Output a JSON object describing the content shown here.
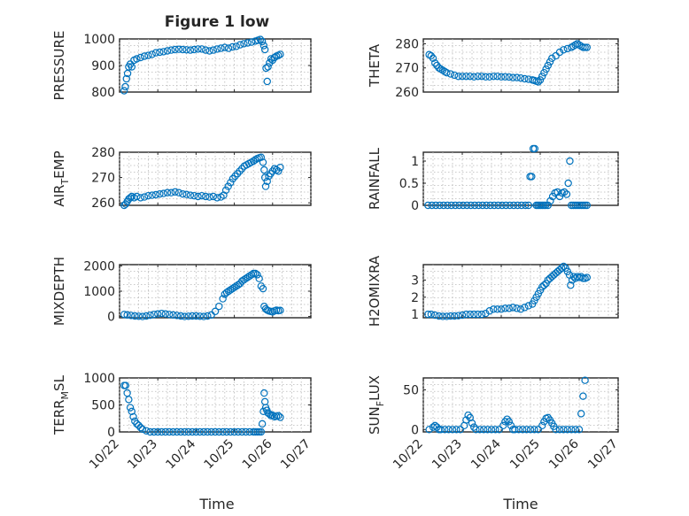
{
  "figure": {
    "title": "Figure 1 low",
    "xlabel": "Time",
    "x_ticklabels": [
      "10/22",
      "10/23",
      "10/24",
      "10/25",
      "10/26",
      "10/27"
    ],
    "marker_color": "#0072bd"
  },
  "chart_data": [
    {
      "type": "scatter",
      "ylabel": "PRESSURE",
      "ylim": [
        800,
        1000
      ],
      "yticks": [
        800,
        900,
        1000
      ],
      "xlim": [
        0,
        5
      ],
      "grid": true,
      "series": [
        {
          "x": [
            0.12,
            0.15,
            0.18,
            0.21,
            0.24,
            0.28,
            0.32,
            0.38,
            0.45,
            0.55,
            0.65,
            0.75,
            0.85,
            0.95,
            1.05,
            1.15,
            1.25,
            1.35,
            1.45,
            1.55,
            1.65,
            1.75,
            1.85,
            1.95,
            2.05,
            2.15,
            2.25,
            2.35,
            2.45,
            2.55,
            2.65,
            2.75,
            2.85,
            2.95,
            3.05,
            3.15,
            3.25,
            3.35,
            3.45,
            3.55,
            3.62,
            3.68,
            3.73,
            3.77,
            3.8,
            3.83,
            3.86,
            3.88,
            3.92,
            3.96,
            4.0,
            4.05,
            4.1,
            4.15,
            4.2
          ],
          "y": [
            805,
            820,
            850,
            870,
            895,
            905,
            895,
            920,
            925,
            930,
            935,
            938,
            942,
            948,
            950,
            952,
            955,
            958,
            960,
            961,
            960,
            959,
            958,
            960,
            962,
            962,
            958,
            955,
            958,
            962,
            965,
            968,
            965,
            970,
            972,
            978,
            982,
            985,
            988,
            992,
            995,
            998,
            990,
            975,
            960,
            890,
            840,
            895,
            910,
            925,
            920,
            930,
            935,
            938,
            942
          ]
        }
      ]
    },
    {
      "type": "scatter",
      "ylabel": "THETA",
      "ylim": [
        260,
        282
      ],
      "yticks": [
        260,
        270,
        280
      ],
      "xlim": [
        0,
        5
      ],
      "grid": true,
      "series": [
        {
          "x": [
            0.15,
            0.2,
            0.25,
            0.3,
            0.35,
            0.4,
            0.45,
            0.5,
            0.55,
            0.6,
            0.7,
            0.8,
            0.9,
            1.0,
            1.1,
            1.2,
            1.3,
            1.4,
            1.5,
            1.6,
            1.7,
            1.8,
            1.9,
            2.0,
            2.1,
            2.2,
            2.3,
            2.4,
            2.5,
            2.6,
            2.7,
            2.8,
            2.85,
            2.9,
            2.95,
            3.0,
            3.05,
            3.1,
            3.15,
            3.2,
            3.25,
            3.3,
            3.4,
            3.5,
            3.6,
            3.7,
            3.8,
            3.85,
            3.9,
            3.95,
            4.0,
            4.05,
            4.1,
            4.15,
            4.2
          ],
          "y": [
            275.5,
            275,
            274,
            272,
            271,
            270,
            269.5,
            269,
            268.5,
            268,
            267.5,
            267,
            266.5,
            266.5,
            266.5,
            266.5,
            266.3,
            266.5,
            266.5,
            266.3,
            266.3,
            266.5,
            266.5,
            266.3,
            266.3,
            266.2,
            266,
            266,
            265.8,
            265.5,
            265.3,
            265,
            264.8,
            264.5,
            264.2,
            265,
            266.5,
            268,
            269.5,
            271,
            272.5,
            274,
            275,
            276.5,
            277.5,
            278,
            278.5,
            279,
            279.5,
            280,
            279.5,
            279,
            278.5,
            278.5,
            278.5
          ]
        }
      ]
    },
    {
      "type": "scatter",
      "ylabel": "AIR_TEMP",
      "ylim": [
        259,
        280
      ],
      "yticks": [
        260,
        270,
        280
      ],
      "xlim": [
        0,
        5
      ],
      "grid": true,
      "series": [
        {
          "x": [
            0.12,
            0.16,
            0.2,
            0.24,
            0.28,
            0.32,
            0.38,
            0.45,
            0.55,
            0.65,
            0.75,
            0.85,
            0.95,
            1.05,
            1.15,
            1.25,
            1.35,
            1.45,
            1.55,
            1.65,
            1.75,
            1.85,
            1.95,
            2.05,
            2.15,
            2.25,
            2.35,
            2.45,
            2.55,
            2.65,
            2.72,
            2.78,
            2.84,
            2.9,
            2.96,
            3.02,
            3.08,
            3.14,
            3.2,
            3.26,
            3.32,
            3.38,
            3.44,
            3.5,
            3.55,
            3.6,
            3.65,
            3.7,
            3.75,
            3.78,
            3.8,
            3.82,
            3.86,
            3.9,
            3.95,
            4.0,
            4.05,
            4.1,
            4.15,
            4.2
          ],
          "y": [
            259,
            259.5,
            260.5,
            261.5,
            262,
            262.5,
            262,
            262.5,
            262,
            262.3,
            262.8,
            263,
            263.2,
            263.5,
            263.7,
            264,
            264,
            264.3,
            264,
            263.5,
            263.3,
            263,
            262.8,
            262.5,
            262.8,
            262.5,
            262.3,
            262.5,
            262,
            262.3,
            263,
            265,
            266.5,
            268,
            269.5,
            270.5,
            271.5,
            272.5,
            273.5,
            274.5,
            275,
            275.5,
            276,
            276.5,
            277,
            277.5,
            277.8,
            278,
            276,
            273,
            270,
            266.5,
            268.5,
            270.5,
            271.5,
            272.5,
            273.5,
            273,
            272.5,
            274
          ]
        }
      ]
    },
    {
      "type": "scatter",
      "ylabel": "RAINFALL",
      "ylim": [
        0,
        1.2
      ],
      "yticks": [
        0,
        0.5,
        1
      ],
      "ytick_labels": [
        "0",
        "0.5",
        "1"
      ],
      "xlim": [
        0,
        5
      ],
      "grid": true,
      "series": [
        {
          "x": [
            0.12,
            0.22,
            0.32,
            0.42,
            0.52,
            0.62,
            0.72,
            0.82,
            0.92,
            1.02,
            1.12,
            1.22,
            1.32,
            1.42,
            1.52,
            1.62,
            1.72,
            1.82,
            1.92,
            2.02,
            2.12,
            2.22,
            2.32,
            2.42,
            2.52,
            2.62,
            2.7,
            2.74,
            2.78,
            2.82,
            2.86,
            2.9,
            2.94,
            2.98,
            3.02,
            3.06,
            3.1,
            3.14,
            3.2,
            3.26,
            3.32,
            3.38,
            3.44,
            3.5,
            3.56,
            3.62,
            3.68,
            3.72,
            3.76,
            3.8,
            3.85,
            3.9,
            3.95,
            4.0,
            4.05,
            4.1,
            4.15,
            4.2
          ],
          "y": [
            0,
            0,
            0,
            0,
            0,
            0,
            0,
            0,
            0,
            0,
            0,
            0,
            0,
            0,
            0,
            0,
            0,
            0,
            0,
            0,
            0,
            0,
            0,
            0,
            0,
            0,
            0,
            0.65,
            0.65,
            1.28,
            1.28,
            0,
            0,
            0,
            0,
            0,
            0,
            0,
            0,
            0.1,
            0.2,
            0.28,
            0.3,
            0.2,
            0.28,
            0.3,
            0.25,
            0.5,
            1.0,
            0,
            0,
            0,
            0,
            0,
            0,
            0,
            0,
            0
          ]
        }
      ]
    },
    {
      "type": "scatter",
      "ylabel": "MIXDEPTH",
      "ylim": [
        -50,
        2050
      ],
      "yticks": [
        0,
        1000,
        2000
      ],
      "xlim": [
        0,
        5
      ],
      "grid": true,
      "series": [
        {
          "x": [
            0.12,
            0.2,
            0.3,
            0.4,
            0.5,
            0.6,
            0.7,
            0.8,
            0.9,
            1.0,
            1.1,
            1.2,
            1.3,
            1.4,
            1.5,
            1.6,
            1.7,
            1.8,
            1.9,
            2.0,
            2.1,
            2.2,
            2.3,
            2.4,
            2.5,
            2.6,
            2.7,
            2.75,
            2.8,
            2.85,
            2.9,
            2.95,
            3.0,
            3.05,
            3.1,
            3.15,
            3.2,
            3.25,
            3.3,
            3.35,
            3.4,
            3.45,
            3.5,
            3.55,
            3.6,
            3.65,
            3.7,
            3.75,
            3.78,
            3.82,
            3.86,
            3.9,
            3.95,
            4.0,
            4.05,
            4.1,
            4.15,
            4.2
          ],
          "y": [
            80,
            60,
            40,
            20,
            10,
            0,
            20,
            50,
            80,
            100,
            120,
            100,
            80,
            60,
            40,
            20,
            0,
            10,
            20,
            20,
            10,
            0,
            20,
            60,
            200,
            400,
            700,
            880,
            950,
            1000,
            1050,
            1100,
            1150,
            1200,
            1250,
            1300,
            1400,
            1450,
            1500,
            1550,
            1600,
            1650,
            1700,
            1700,
            1650,
            1500,
            1200,
            1100,
            400,
            300,
            250,
            220,
            200,
            180,
            220,
            250,
            230,
            240
          ]
        }
      ]
    },
    {
      "type": "scatter",
      "ylabel": "H2OMIXRA",
      "ylim": [
        0.8,
        3.9
      ],
      "yticks": [
        1,
        2,
        3
      ],
      "xlim": [
        0,
        5
      ],
      "grid": true,
      "series": [
        {
          "x": [
            0.12,
            0.2,
            0.3,
            0.4,
            0.5,
            0.6,
            0.7,
            0.8,
            0.9,
            1.0,
            1.1,
            1.2,
            1.3,
            1.4,
            1.5,
            1.6,
            1.7,
            1.8,
            1.9,
            2.0,
            2.1,
            2.2,
            2.3,
            2.4,
            2.5,
            2.6,
            2.7,
            2.8,
            2.85,
            2.9,
            2.95,
            3.0,
            3.05,
            3.1,
            3.15,
            3.2,
            3.25,
            3.3,
            3.35,
            3.4,
            3.45,
            3.5,
            3.55,
            3.6,
            3.65,
            3.7,
            3.75,
            3.78,
            3.82,
            3.86,
            3.9,
            3.95,
            4.0,
            4.05,
            4.1,
            4.15,
            4.2
          ],
          "y": [
            1.0,
            1.0,
            0.95,
            0.9,
            0.88,
            0.88,
            0.9,
            0.9,
            0.92,
            0.95,
            1.0,
            1.0,
            1.0,
            1.0,
            1.0,
            1.05,
            1.2,
            1.3,
            1.3,
            1.3,
            1.35,
            1.35,
            1.4,
            1.35,
            1.3,
            1.4,
            1.5,
            1.6,
            1.8,
            2.0,
            2.2,
            2.4,
            2.6,
            2.7,
            2.8,
            3.0,
            3.1,
            3.2,
            3.3,
            3.4,
            3.5,
            3.6,
            3.7,
            3.8,
            3.7,
            3.5,
            3.3,
            2.7,
            3.0,
            3.2,
            3.1,
            3.2,
            3.15,
            3.2,
            3.1,
            3.1,
            3.15
          ]
        }
      ]
    },
    {
      "type": "scatter",
      "ylabel": "TERR_MSL",
      "ylim": [
        0,
        1000
      ],
      "yticks": [
        0,
        500,
        1000
      ],
      "xlim": [
        0,
        5
      ],
      "grid": true,
      "series": [
        {
          "x": [
            0.12,
            0.16,
            0.2,
            0.24,
            0.28,
            0.32,
            0.36,
            0.4,
            0.45,
            0.5,
            0.55,
            0.6,
            0.7,
            0.8,
            0.9,
            1.0,
            1.1,
            1.2,
            1.3,
            1.4,
            1.5,
            1.6,
            1.7,
            1.8,
            1.9,
            2.0,
            2.1,
            2.2,
            2.3,
            2.4,
            2.5,
            2.6,
            2.7,
            2.8,
            2.9,
            3.0,
            3.1,
            3.2,
            3.3,
            3.4,
            3.5,
            3.55,
            3.6,
            3.65,
            3.7,
            3.73,
            3.76,
            3.78,
            3.8,
            3.82,
            3.85,
            3.88,
            3.92,
            3.96,
            4.0,
            4.05,
            4.1,
            4.15,
            4.2
          ],
          "y": [
            860,
            860,
            720,
            600,
            450,
            380,
            280,
            200,
            150,
            120,
            80,
            50,
            20,
            0,
            0,
            0,
            0,
            0,
            0,
            0,
            0,
            0,
            0,
            0,
            0,
            0,
            0,
            0,
            0,
            0,
            0,
            0,
            0,
            0,
            0,
            0,
            0,
            0,
            0,
            0,
            0,
            0,
            0,
            0,
            0,
            150,
            380,
            720,
            560,
            450,
            400,
            350,
            330,
            300,
            310,
            280,
            290,
            300,
            270
          ]
        }
      ]
    },
    {
      "type": "scatter",
      "ylabel": "SUN_FLUX",
      "ylim": [
        -3,
        65
      ],
      "yticks": [
        0,
        50
      ],
      "xlim": [
        0,
        5
      ],
      "grid": true,
      "series": [
        {
          "x": [
            0.15,
            0.25,
            0.3,
            0.35,
            0.4,
            0.45,
            0.55,
            0.65,
            0.75,
            0.85,
            0.95,
            1.05,
            1.1,
            1.15,
            1.2,
            1.25,
            1.3,
            1.35,
            1.45,
            1.55,
            1.65,
            1.75,
            1.85,
            1.95,
            2.05,
            2.1,
            2.15,
            2.2,
            2.25,
            2.3,
            2.35,
            2.45,
            2.55,
            2.65,
            2.75,
            2.85,
            2.95,
            3.05,
            3.1,
            3.15,
            3.2,
            3.25,
            3.3,
            3.35,
            3.4,
            3.5,
            3.6,
            3.7,
            3.8,
            3.9,
            4.0,
            4.05,
            4.1,
            4.15
          ],
          "y": [
            0,
            3,
            5,
            3,
            0,
            0,
            0,
            0,
            0,
            0,
            0,
            5,
            12,
            18,
            15,
            8,
            3,
            0,
            0,
            0,
            0,
            0,
            0,
            0,
            5,
            10,
            13,
            10,
            5,
            0,
            0,
            0,
            0,
            0,
            0,
            0,
            0,
            5,
            10,
            14,
            15,
            12,
            8,
            4,
            0,
            0,
            0,
            0,
            0,
            0,
            0,
            20,
            42,
            62
          ]
        }
      ]
    }
  ]
}
